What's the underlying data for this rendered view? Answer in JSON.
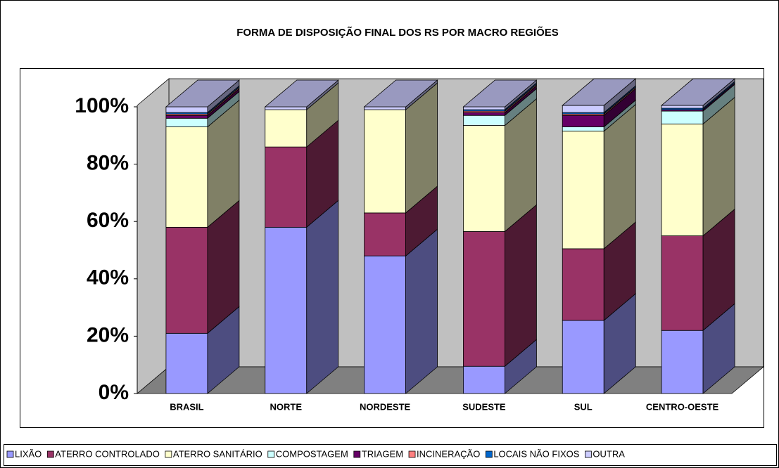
{
  "chart_data": {
    "type": "bar",
    "stacked": true,
    "title": "FORMA DE DISPOSIÇÃO FINAL DOS RS POR MACRO REGIÕES",
    "categories": [
      "BRASIL",
      "NORTE",
      "NORDESTE",
      "SUDESTE",
      "SUL",
      "CENTRO-OESTE"
    ],
    "series": [
      {
        "name": "LIXÃO",
        "color": "#9999ff",
        "values": [
          21,
          58,
          48,
          9.5,
          25.5,
          22
        ]
      },
      {
        "name": "ATERRO CONTROLADO",
        "color": "#993366",
        "values": [
          37,
          28,
          15,
          47,
          25,
          33
        ]
      },
      {
        "name": "ATERRO SANITÁRIO",
        "color": "#ffffcc",
        "values": [
          35,
          13,
          36,
          37,
          41,
          39
        ]
      },
      {
        "name": "COMPOSTAGEM",
        "color": "#ccffff",
        "values": [
          3,
          0,
          0,
          3.5,
          1.5,
          4.5
        ]
      },
      {
        "name": "TRIAGEM",
        "color": "#660066",
        "values": [
          1,
          0,
          0,
          1,
          4,
          0.5
        ]
      },
      {
        "name": "INCINERAÇÃO",
        "color": "#ff8080",
        "values": [
          0.5,
          0,
          0,
          0.5,
          0.5,
          0
        ]
      },
      {
        "name": "LOCAIS NÃO FIXOS",
        "color": "#0066cc",
        "values": [
          0.5,
          0,
          0,
          0.5,
          0.5,
          0.5
        ]
      },
      {
        "name": "OUTRA",
        "color": "#ccccff",
        "values": [
          2,
          1,
          1,
          1,
          2.5,
          1
        ]
      }
    ],
    "ylim": [
      0,
      100
    ],
    "yticks": [
      {
        "value": 0,
        "label": "0%"
      },
      {
        "value": 20,
        "label": "20%"
      },
      {
        "value": 40,
        "label": "40%"
      },
      {
        "value": 60,
        "label": "60%"
      },
      {
        "value": 80,
        "label": "80%"
      },
      {
        "value": 100,
        "label": "100%"
      }
    ],
    "legend": "bottom"
  }
}
